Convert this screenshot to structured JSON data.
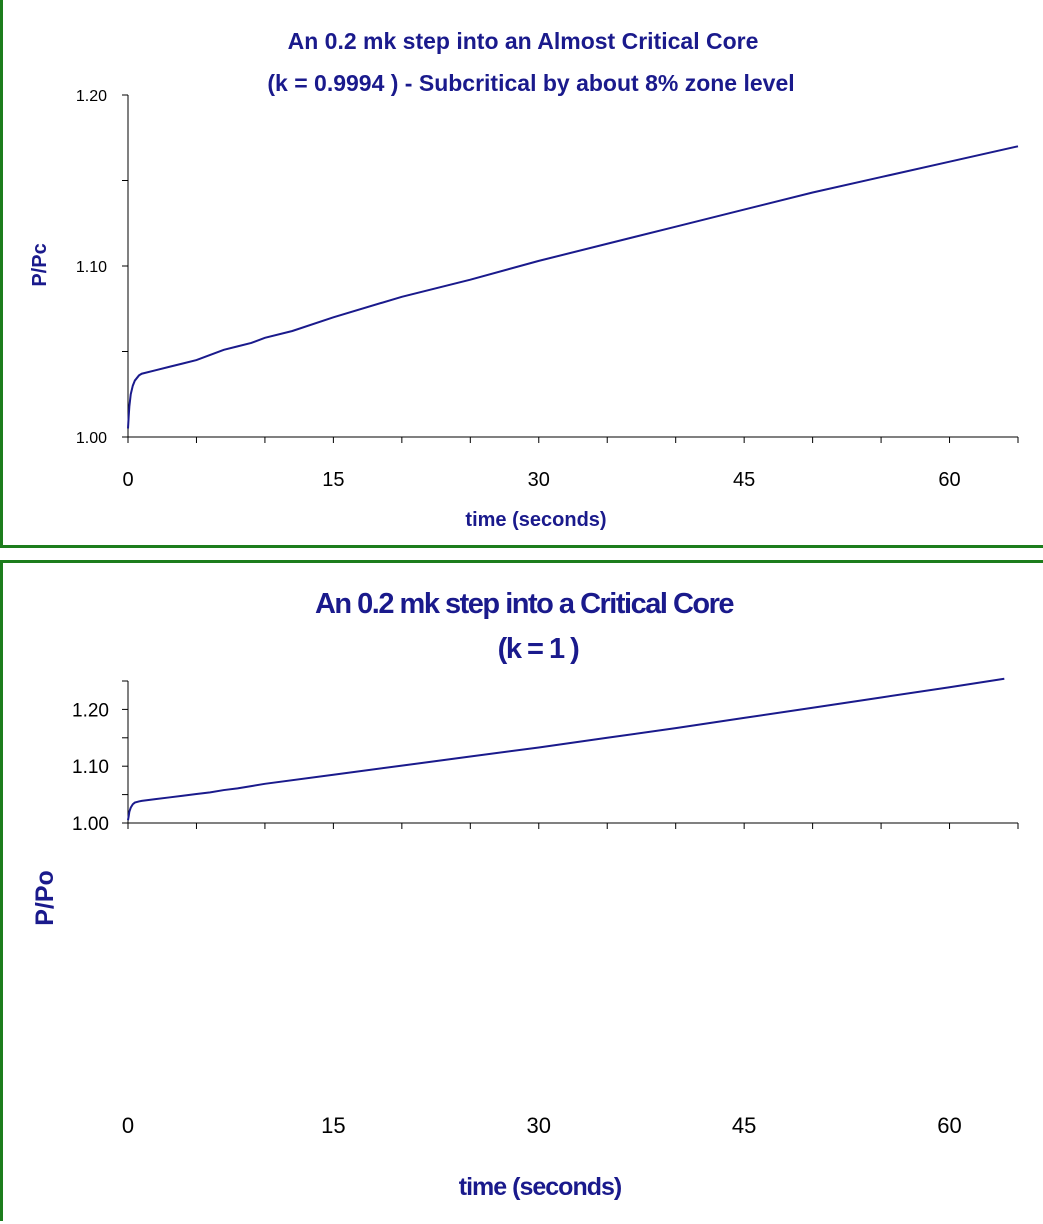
{
  "chart_data": [
    {
      "type": "line",
      "title": "An 0.2 mk step into an Almost Critical Core",
      "subtitle": "(k = 0.9994 ) - Subcritical by about 8% zone level",
      "xlabel": "time (seconds)",
      "ylabel": "P/Pc",
      "xlim": [
        0,
        65
      ],
      "ylim": [
        1.0,
        1.2
      ],
      "xticks": [
        "0",
        "15",
        "30",
        "45",
        "60"
      ],
      "xtick_values": [
        0,
        15,
        30,
        45,
        60
      ],
      "xminor_step": 5,
      "yticks": [
        "1.00",
        "1.10",
        "1.20"
      ],
      "ytick_values": [
        1.0,
        1.1,
        1.2
      ],
      "yminor_step": 0.05,
      "grid": false,
      "legend": "none",
      "line_color": "#1a1a8c",
      "series": [
        {
          "x": [
            0,
            0.05,
            0.1,
            0.2,
            0.35,
            0.5,
            0.8,
            1.0,
            2,
            3,
            4,
            5,
            6,
            7,
            8,
            9,
            10,
            12,
            15,
            20,
            25,
            30,
            35,
            40,
            45,
            50,
            55,
            60,
            65
          ],
          "y": [
            1.005,
            1.012,
            1.018,
            1.025,
            1.03,
            1.033,
            1.036,
            1.037,
            1.039,
            1.041,
            1.043,
            1.045,
            1.048,
            1.051,
            1.053,
            1.055,
            1.058,
            1.062,
            1.07,
            1.082,
            1.092,
            1.103,
            1.113,
            1.123,
            1.133,
            1.143,
            1.152,
            1.161,
            1.17
          ]
        }
      ]
    },
    {
      "type": "line",
      "title": "An 0.2 mk step into a Critical Core",
      "subtitle": "(k = 1 )",
      "xlabel": "time (seconds)",
      "ylabel": "P/Po",
      "xlim": [
        0,
        65
      ],
      "ylim": [
        1.0,
        1.25
      ],
      "xticks": [
        "0",
        "15",
        "30",
        "45",
        "60"
      ],
      "xtick_values": [
        0,
        15,
        30,
        45,
        60
      ],
      "xminor_step": 5,
      "yticks": [
        "1.00",
        "1.10",
        "1.20"
      ],
      "ytick_values": [
        1.0,
        1.1,
        1.2
      ],
      "yminor_step": 0.05,
      "grid": false,
      "legend": "none",
      "line_color": "#1a1a8c",
      "series": [
        {
          "x": [
            0,
            0.05,
            0.1,
            0.2,
            0.35,
            0.5,
            0.8,
            1.0,
            2,
            3,
            4,
            5,
            6,
            7,
            8,
            9,
            10,
            15,
            20,
            25,
            30,
            35,
            40,
            45,
            50,
            55,
            60,
            64
          ],
          "y": [
            1.005,
            1.012,
            1.02,
            1.027,
            1.033,
            1.036,
            1.038,
            1.039,
            1.042,
            1.045,
            1.048,
            1.051,
            1.054,
            1.058,
            1.061,
            1.065,
            1.069,
            1.085,
            1.101,
            1.117,
            1.133,
            1.15,
            1.167,
            1.185,
            1.203,
            1.221,
            1.239,
            1.254
          ]
        }
      ]
    }
  ]
}
